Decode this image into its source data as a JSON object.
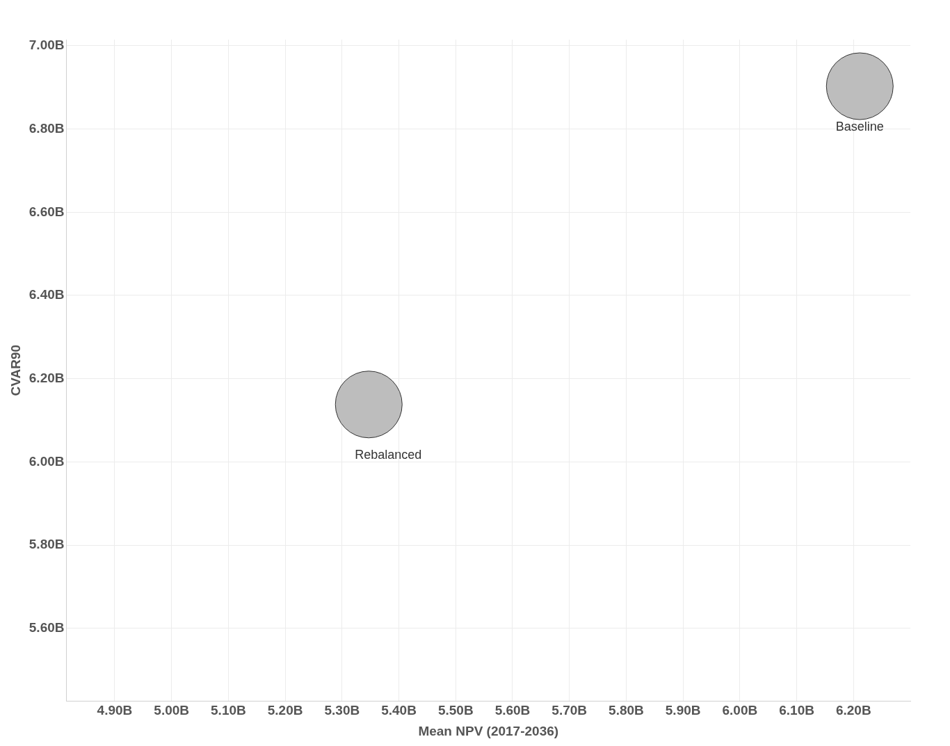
{
  "chart_data": {
    "type": "bubble",
    "xlabel": "Mean NPV (2017-2036)",
    "ylabel": "CVAR90",
    "xlim": [
      4.815,
      6.3
    ],
    "ylim": [
      5.425,
      7.015
    ],
    "xticks": [
      {
        "value": 4.9,
        "label": "4.90B"
      },
      {
        "value": 5.0,
        "label": "5.00B"
      },
      {
        "value": 5.1,
        "label": "5.10B"
      },
      {
        "value": 5.2,
        "label": "5.20B"
      },
      {
        "value": 5.3,
        "label": "5.30B"
      },
      {
        "value": 5.4,
        "label": "5.40B"
      },
      {
        "value": 5.5,
        "label": "5.50B"
      },
      {
        "value": 5.6,
        "label": "5.60B"
      },
      {
        "value": 5.7,
        "label": "5.70B"
      },
      {
        "value": 5.8,
        "label": "5.80B"
      },
      {
        "value": 5.9,
        "label": "5.90B"
      },
      {
        "value": 6.0,
        "label": "6.00B"
      },
      {
        "value": 6.1,
        "label": "6.10B"
      },
      {
        "value": 6.2,
        "label": "6.20B"
      }
    ],
    "yticks": [
      {
        "value": 5.6,
        "label": "5.60B"
      },
      {
        "value": 5.8,
        "label": "5.80B"
      },
      {
        "value": 6.0,
        "label": "6.00B"
      },
      {
        "value": 6.2,
        "label": "6.20B"
      },
      {
        "value": 6.4,
        "label": "6.40B"
      },
      {
        "value": 6.6,
        "label": "6.60B"
      },
      {
        "value": 6.8,
        "label": "6.80B"
      },
      {
        "value": 7.0,
        "label": "7.00B"
      }
    ],
    "grid": true,
    "legend": false,
    "series": [
      {
        "name": "Baseline",
        "color": "#bdbdbd",
        "x": [
          6.211
        ],
        "values": [
          6.903
        ],
        "sizes": [
          1
        ]
      },
      {
        "name": "Rebalanced",
        "color": "#bdbdbd",
        "x": [
          5.347
        ],
        "values": [
          6.138
        ],
        "sizes": [
          1
        ]
      }
    ]
  }
}
